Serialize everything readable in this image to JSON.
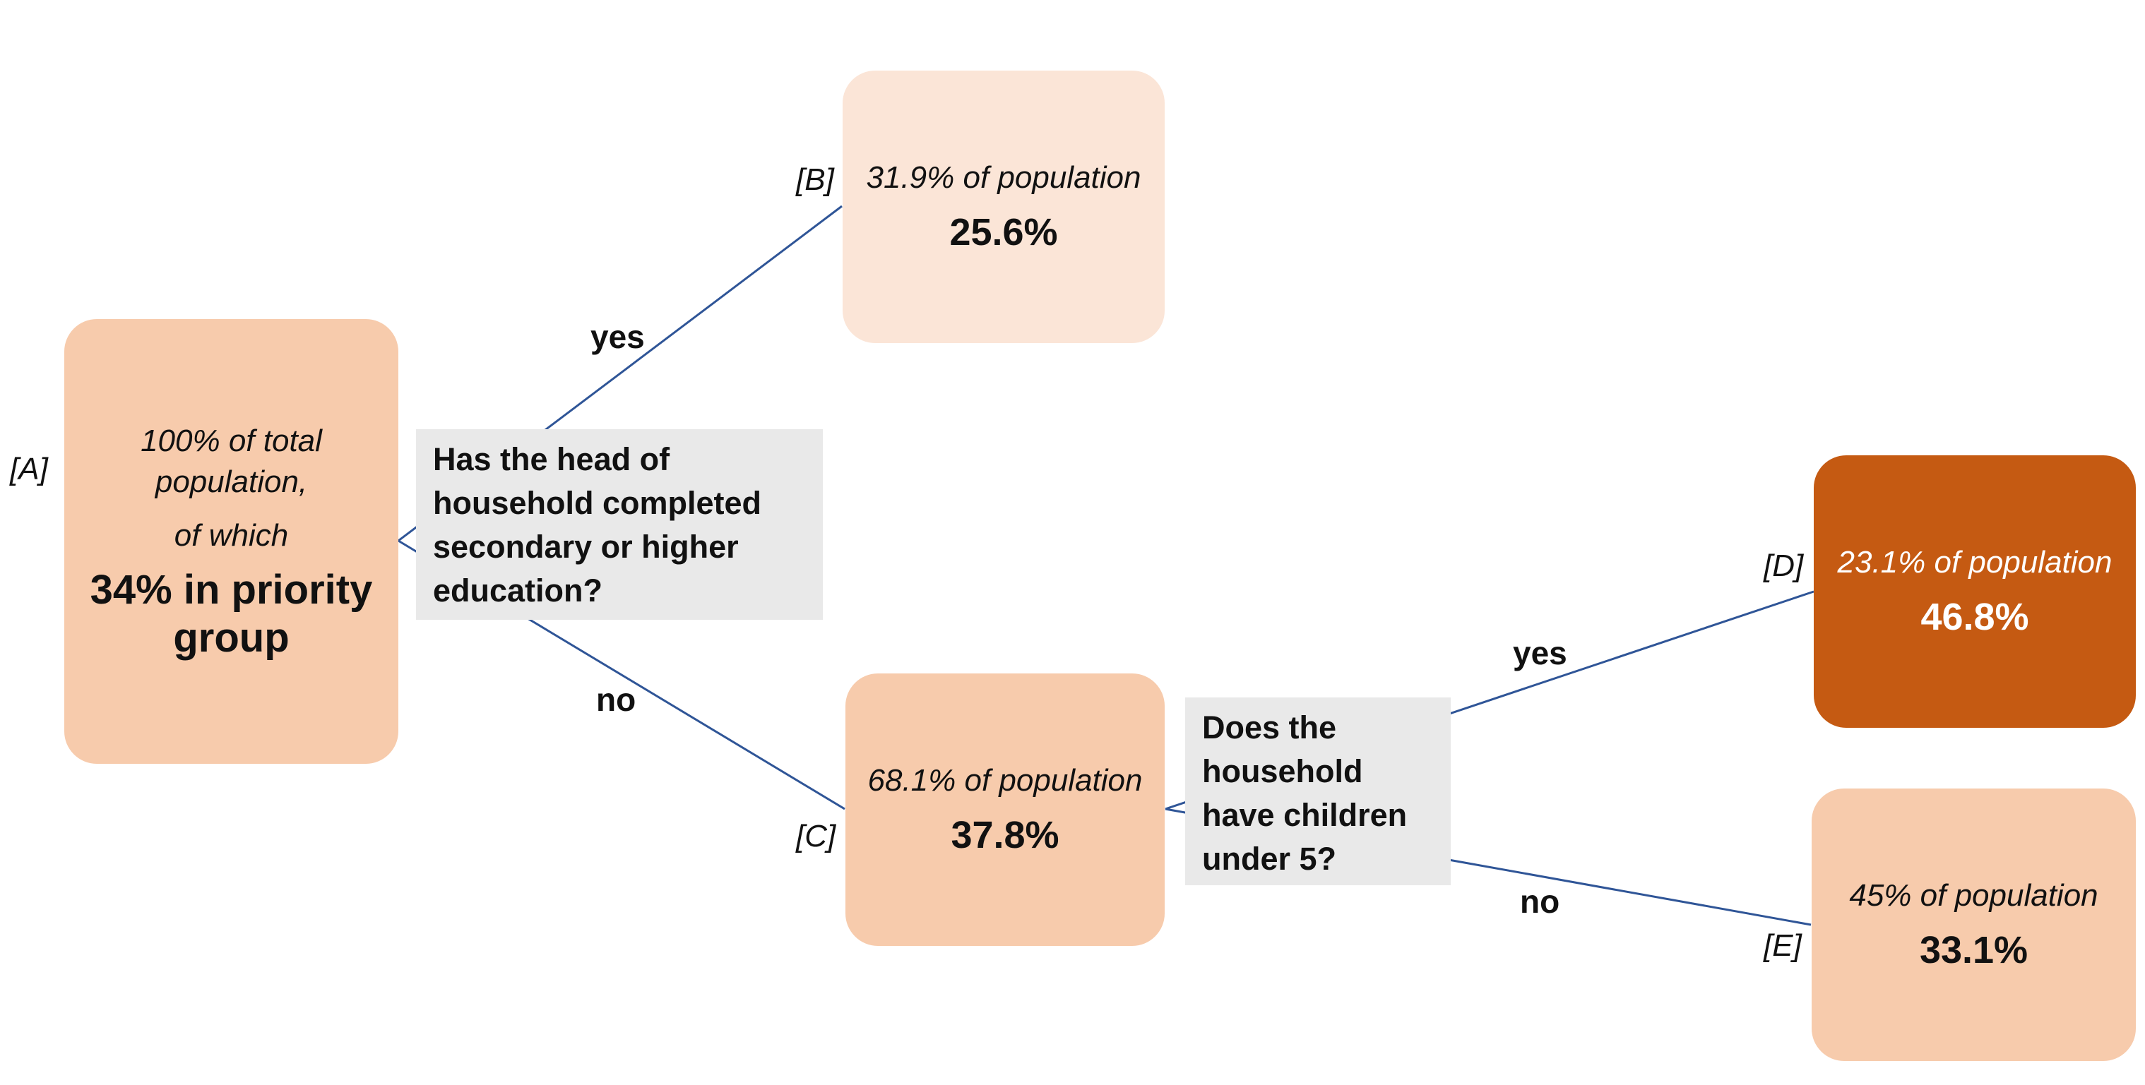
{
  "colors": {
    "node_fill": "#f7cbac",
    "node_fill_light": "#fbe5d7",
    "node_fill_dark": "#c55a12",
    "question_fill": "#e9e9e9",
    "edge_line": "#2f5597"
  },
  "nodes": {
    "a": {
      "tag": "[A]",
      "share_line1": "100% of total",
      "share_line2": "population,",
      "share_line3": "of which",
      "rate_line1": "34% in priority",
      "rate_line2": "group"
    },
    "b": {
      "tag": "[B]",
      "share": "31.9% of population",
      "rate": "25.6%"
    },
    "c": {
      "tag": "[C]",
      "share": "68.1% of population",
      "rate": "37.8%"
    },
    "d": {
      "tag": "[D]",
      "share": "23.1% of population",
      "rate": "46.8%"
    },
    "e": {
      "tag": "[E]",
      "share": "45% of population",
      "rate": "33.1%"
    }
  },
  "questions": {
    "q1": [
      "Has the head of",
      "household completed",
      "secondary or higher",
      "education?"
    ],
    "q2": [
      "Does the",
      "household",
      "have children",
      "under 5?"
    ]
  },
  "edge_labels": {
    "a_b": "yes",
    "a_c": "no",
    "c_d": "yes",
    "c_e": "no"
  }
}
